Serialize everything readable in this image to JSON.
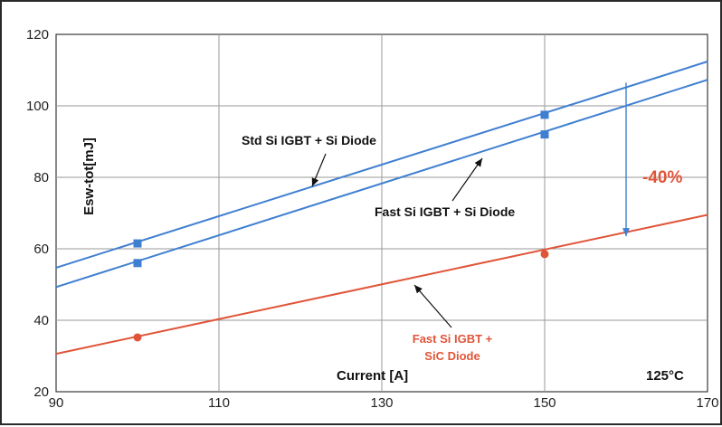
{
  "chart_data": {
    "type": "line",
    "xlabel": "Current [A]",
    "ylabel": "Esw-tot[mJ]",
    "xlim": [
      90,
      170
    ],
    "ylim": [
      20,
      120
    ],
    "x_ticks": [
      90,
      110,
      130,
      150,
      170
    ],
    "y_ticks": [
      20,
      40,
      60,
      80,
      100,
      120
    ],
    "grid": true,
    "temperature_label": "125°C",
    "reduction_label": "-40%",
    "series": [
      {
        "name": "Std Si IGBT + Si Diode",
        "color": "#3f7fd1",
        "marker": "square",
        "line": [
          [
            90,
            54.7
          ],
          [
            170,
            112.4
          ]
        ],
        "points": [
          [
            100,
            61.5
          ],
          [
            150,
            97.5
          ]
        ]
      },
      {
        "name": "Fast Si IGBT + Si Diode",
        "color": "#3f7fd1",
        "marker": "square",
        "line": [
          [
            90,
            49.3
          ],
          [
            170,
            107.3
          ]
        ],
        "points": [
          [
            100,
            56.0
          ],
          [
            150,
            92.0
          ]
        ]
      },
      {
        "name": "Fast Si IGBT + SiC Diode",
        "name_lines": [
          "Fast Si IGBT +",
          "SiC Diode"
        ],
        "color": "#e0553a",
        "marker": "circle",
        "line": [
          [
            90,
            30.6
          ],
          [
            170,
            69.5
          ]
        ],
        "points": [
          [
            100,
            35.2
          ],
          [
            150,
            58.5
          ]
        ]
      }
    ],
    "reduction_arrow": {
      "x": 160,
      "y_from": 106.5,
      "y_to": 63.5
    }
  }
}
